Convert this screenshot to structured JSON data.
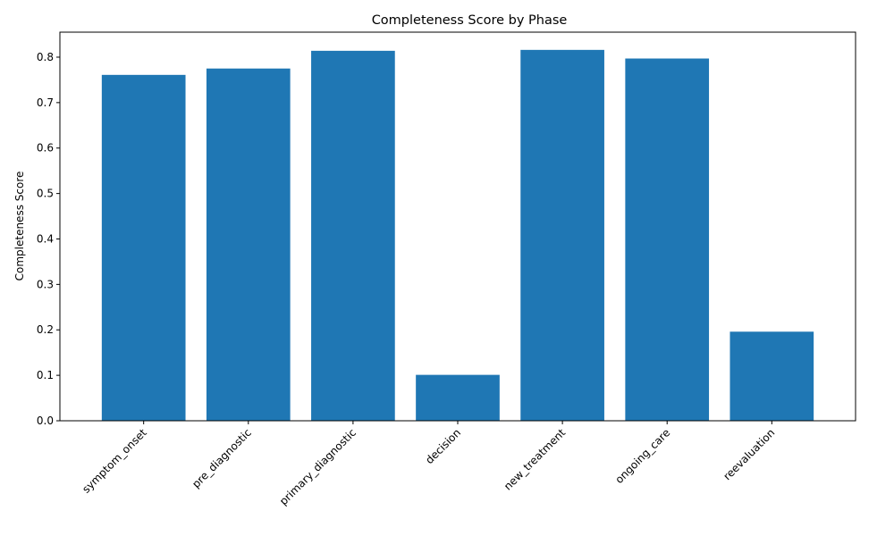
{
  "chart_data": {
    "type": "bar",
    "title": "Completeness Score by Phase",
    "xlabel": "",
    "ylabel": "Completeness Score",
    "categories": [
      "symptom_onset",
      "pre_diagnostic",
      "primary_diagnostic",
      "decision",
      "new_treatment",
      "ongoing_care",
      "reevaluation"
    ],
    "values": [
      0.761,
      0.775,
      0.814,
      0.101,
      0.816,
      0.797,
      0.196
    ],
    "ylim": [
      0,
      0.855
    ],
    "yticks": [
      "0.0",
      "0.1",
      "0.2",
      "0.3",
      "0.4",
      "0.5",
      "0.6",
      "0.7",
      "0.8"
    ],
    "bar_color": "#1f77b4",
    "grid": false,
    "legend": "none"
  }
}
